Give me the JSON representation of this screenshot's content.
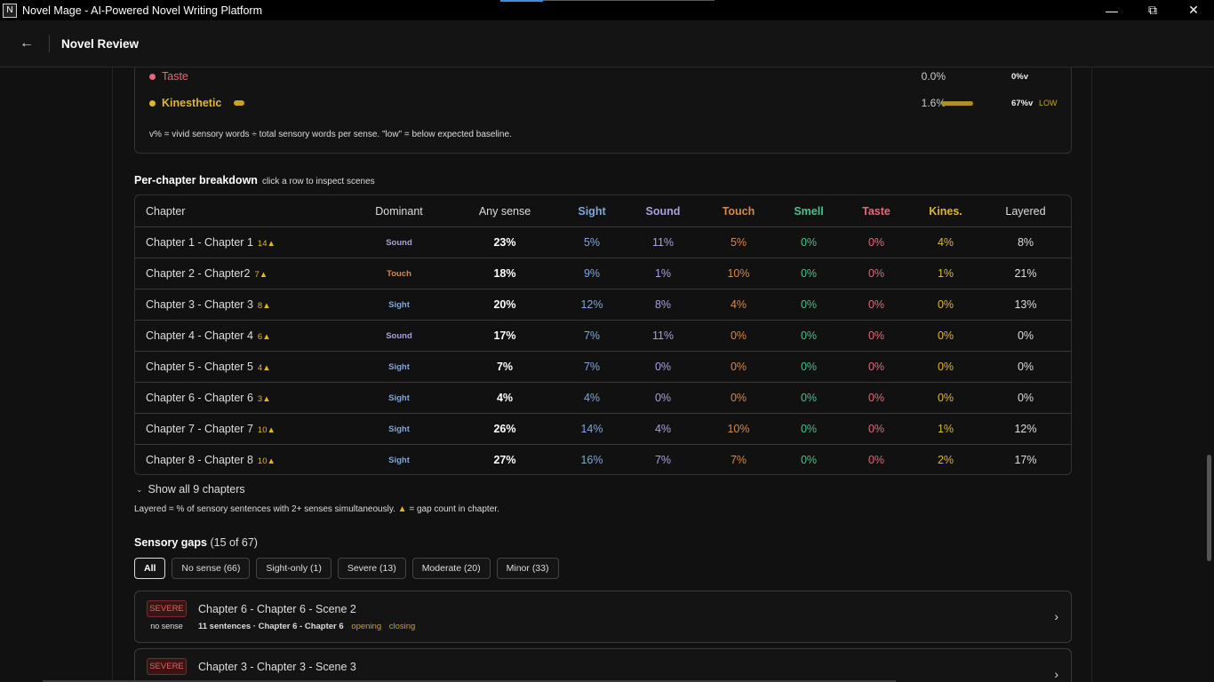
{
  "window": {
    "title": "Novel Mage - AI-Powered Novel Writing Platform"
  },
  "header": {
    "title": "Novel Review"
  },
  "senses": {
    "rows": [
      {
        "name": "Taste",
        "color": "#e06b7a",
        "pct": "0.0%",
        "vivid": "0%v",
        "level": "",
        "bar": 0
      },
      {
        "name": "Kinesthetic",
        "color": "#e0b72a",
        "pct": "1.6%",
        "vivid": "67%v",
        "level": "LOW",
        "bar": 1
      }
    ],
    "note": "v% = vivid sensory words ÷ total sensory words per sense. \"low\" = below expected baseline."
  },
  "breakdown": {
    "title": "Per-chapter breakdown",
    "hint": "click a row to inspect scenes",
    "headers": {
      "chapter": "Chapter",
      "dominant": "Dominant",
      "any": "Any sense",
      "sight": "Sight",
      "sound": "Sound",
      "touch": "Touch",
      "smell": "Smell",
      "taste": "Taste",
      "kines": "Kines.",
      "layered": "Layered"
    },
    "rows": [
      {
        "chapter": "Chapter 1 - Chapter 1",
        "gaps": "14",
        "dominant": "Sound",
        "any": "23%",
        "sight": "5%",
        "sound": "11%",
        "touch": "5%",
        "smell": "0%",
        "taste": "0%",
        "kines": "4%",
        "layered": "8%"
      },
      {
        "chapter": "Chapter 2 - Chapter2",
        "gaps": "7",
        "dominant": "Touch",
        "any": "18%",
        "sight": "9%",
        "sound": "1%",
        "touch": "10%",
        "smell": "0%",
        "taste": "0%",
        "kines": "1%",
        "layered": "21%"
      },
      {
        "chapter": "Chapter 3 - Chapter 3",
        "gaps": "8",
        "dominant": "Sight",
        "any": "20%",
        "sight": "12%",
        "sound": "8%",
        "touch": "4%",
        "smell": "0%",
        "taste": "0%",
        "kines": "0%",
        "layered": "13%"
      },
      {
        "chapter": "Chapter 4 - Chapter 4",
        "gaps": "6",
        "dominant": "Sound",
        "any": "17%",
        "sight": "7%",
        "sound": "11%",
        "touch": "0%",
        "smell": "0%",
        "taste": "0%",
        "kines": "0%",
        "layered": "0%"
      },
      {
        "chapter": "Chapter 5 - Chapter 5",
        "gaps": "4",
        "dominant": "Sight",
        "any": "7%",
        "sight": "7%",
        "sound": "0%",
        "touch": "0%",
        "smell": "0%",
        "taste": "0%",
        "kines": "0%",
        "layered": "0%"
      },
      {
        "chapter": "Chapter 6 - Chapter 6",
        "gaps": "3",
        "dominant": "Sight",
        "any": "4%",
        "sight": "4%",
        "sound": "0%",
        "touch": "0%",
        "smell": "0%",
        "taste": "0%",
        "kines": "0%",
        "layered": "0%"
      },
      {
        "chapter": "Chapter 7 - Chapter 7",
        "gaps": "10",
        "dominant": "Sight",
        "any": "26%",
        "sight": "14%",
        "sound": "4%",
        "touch": "10%",
        "smell": "0%",
        "taste": "0%",
        "kines": "1%",
        "layered": "12%"
      },
      {
        "chapter": "Chapter 8 - Chapter 8",
        "gaps": "10",
        "dominant": "Sight",
        "any": "27%",
        "sight": "16%",
        "sound": "7%",
        "touch": "7%",
        "smell": "0%",
        "taste": "0%",
        "kines": "2%",
        "layered": "17%"
      }
    ],
    "show_all": "Show all 9 chapters",
    "legend_a": "Layered = % of sensory sentences with 2+ senses simultaneously.",
    "legend_b": "= gap count in chapter."
  },
  "gaps": {
    "title": "Sensory gaps",
    "count": "(15 of 67)",
    "filters": [
      "All",
      "No sense (66)",
      "Sight-only (1)",
      "Severe (13)",
      "Moderate (20)",
      "Minor (33)"
    ],
    "cards": [
      {
        "severity": "SEVERE",
        "sub": "no sense",
        "title": "Chapter 6 - Chapter 6 - Scene 2",
        "meta": "11 sentences · Chapter 6 - Chapter 6",
        "tags": [
          "opening",
          "closing"
        ]
      },
      {
        "severity": "SEVERE",
        "sub": "",
        "title": "Chapter 3 - Chapter 3 - Scene 3",
        "meta": "",
        "tags": []
      }
    ]
  },
  "colors": {
    "sight": "#7fa7de",
    "sound": "#a8a0dc",
    "touch": "#d38a4d",
    "smell": "#49c28b",
    "taste": "#e06b7a",
    "kines": "#e0b72a"
  }
}
